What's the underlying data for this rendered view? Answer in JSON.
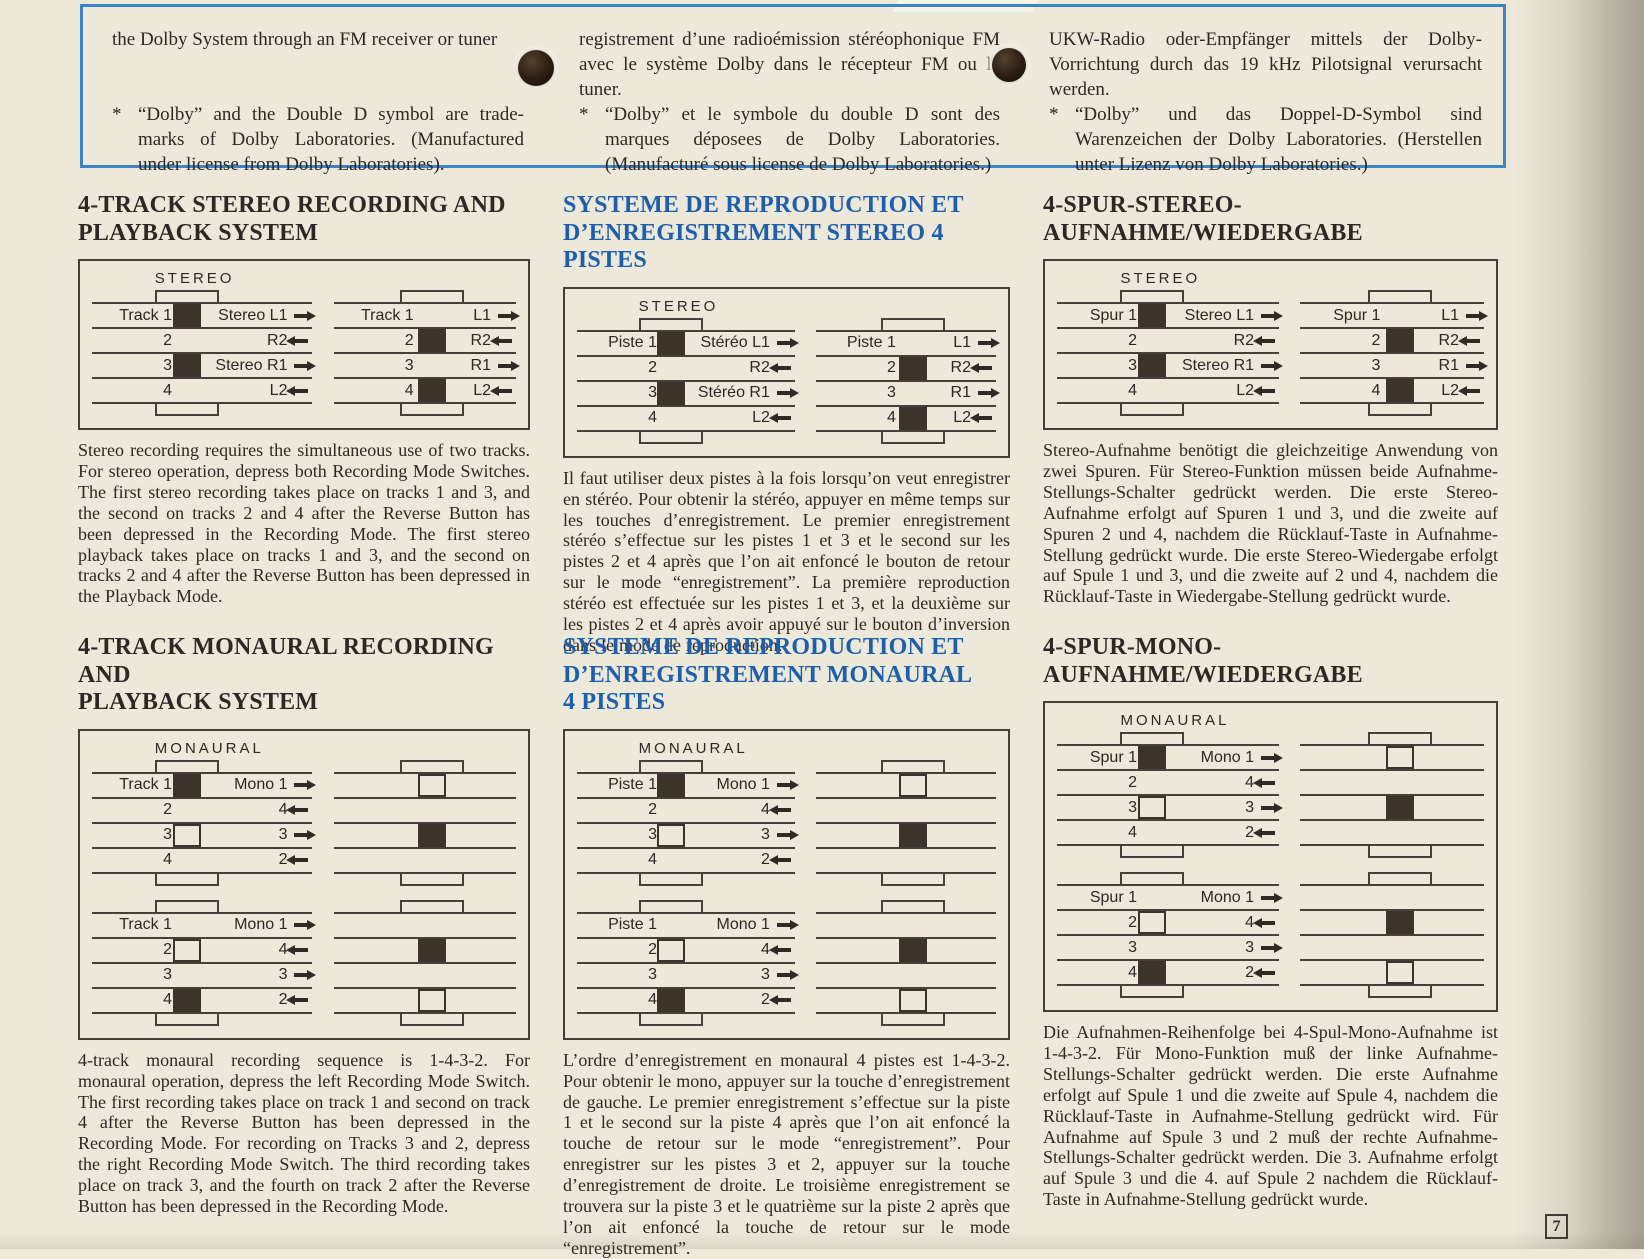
{
  "page": {
    "number": "7"
  },
  "colors": {
    "paper": "#ece8da",
    "ink": "#2d2823",
    "heading_blue": "#1d5fad",
    "box_border_blue": "#3f84c2",
    "diagram_line": "#474038"
  },
  "intro_box": {
    "en": {
      "para": "the Dolby System through an FM receiver or tuner",
      "note_marker": "*",
      "note": "“Dolby” and the Double D symbol are trade-marks of Dolby Laboratories. (Manufactured under license from Dolby Laboratories)."
    },
    "fr": {
      "para": "registrement d’une radioémission stéréophonique FM avec le système Dolby dans le récepteur FM ou le tuner.",
      "note_marker": "*",
      "note": "“Dolby” et le symbole du double D sont des marques déposees de Dolby Laboratories. (Manufacturé sous license de Dolby Laboratories.)"
    },
    "de": {
      "para": "UKW-Radio oder-Empfänger mittels der Dolby-Vorrichtung durch das 19 kHz Pilotsignal verursacht werden.",
      "note_marker": "*",
      "note": "“Dolby” und das Doppel-D-Symbol sind Warenzeichen der Dolby Laboratories. (Herstellen unter Lizenz von Dolby Laboratories.)"
    }
  },
  "sections": {
    "en_stereo": {
      "heading": "4-TRACK STEREO RECORDING AND\nPLAYBACK SYSTEM",
      "body": "Stereo recording requires the simultaneous use of two tracks. For stereo operation, depress both Recording Mode Switches. The first stereo recording takes place on tracks 1 and 3, and the second on tracks 2 and 4 after the Reverse Button has been depressed in the Recording Mode. The first stereo playback takes place on tracks 1 and 3, and the second on tracks 2 and 4 after the Reverse Button has been depressed in the Playback Mode."
    },
    "en_mono": {
      "heading": "4-TRACK MONAURAL RECORDING AND\nPLAYBACK SYSTEM",
      "body": "4-track monaural recording sequence is 1-4-3-2. For monaural operation, depress the left Recording Mode Switch. The first recording takes place on track 1 and second on track 4 after the Reverse Button has been depressed in the Recording Mode. For recording on Tracks 3 and 2, depress the right Recording Mode Switch. The third recording takes place on track 3, and the fourth on track 2 after the Reverse Button has been depressed in the Recording Mode."
    },
    "fr_stereo": {
      "heading": "SYSTEME DE REPRODUCTION ET\nD’ENREGISTREMENT STEREO 4 PISTES",
      "body": "Il faut utiliser deux pistes à la fois lorsqu’on veut enregistrer en stéréo. Pour obtenir la stéréo, appuyer en même temps sur les touches d’enregistrement. Le premier enregistrement stéréo s’effectue sur les pistes 1 et 3 et le second sur les pistes 2 et 4 après que l’on ait enfoncé le bouton de retour sur le mode “enregistrement”. La première reproduction stéréo est effectuée sur les pistes 1 et 3, et la deuxième sur les pistes 2 et 4 après avoir appuyé sur le bouton d’inversion dans le mode de reproduction."
    },
    "fr_mono": {
      "heading": "SYSTEME DE REPRODUCTION ET\nD’ENREGISTREMENT MONAURAL\n4 PISTES",
      "body": "L’ordre d’enregistrement en monaural 4 pistes est 1-4-3-2. Pour obtenir le mono, appuyer sur la touche d’enregistrement de gauche. Le premier enregistrement s’effectue sur la piste 1 et le second sur la piste 4 après que l’on ait enfoncé la touche de retour sur le mode “enregistrement”. Pour enregistrer sur les pistes 3 et 2, appuyer sur la touche d’enregistrement de droite. Le troisième enregistrement se trouvera sur la piste 3 et le quatrième sur la piste 2 après que l’on ait enfoncé la touche de retour sur le mode “enregistrement”."
    },
    "de_stereo": {
      "heading": "4-SPUR-STEREO-AUFNAHME/WIEDERGABE",
      "body": "Stereo-Aufnahme benötigt die gleichzeitige Anwendung von zwei Spuren. Für Stereo-Funktion müssen beide Aufnahme-Stellungs-Schalter gedrückt werden. Die erste Stereo-Aufnahme erfolgt auf Spuren 1 und 3, und die zweite auf Spuren 2 und 4, nachdem die Rücklauf-Taste in Aufnahme-Stellung gedrückt wurde. Die erste Stereo-Wiedergabe erfolgt auf Spule 1 und 3, und die zweite auf 2 und 4, nachdem die Rücklauf-Taste in Wiedergabe-Stellung gedrückt wurde."
    },
    "de_mono": {
      "heading": "4-SPUR-MONO-AUFNAHME/WIEDERGABE",
      "body": "Die Aufnahmen-Reihenfolge bei 4-Spul-Mono-Aufnahme ist 1-4-3-2. Für Mono-Funktion muß der linke Aufnahme-Stellungs-Schalter gedrückt werden. Die erste Aufnahme erfolgt auf Spule 1 und die zweite auf Spule 4, nachdem die Rücklauf-Taste in Aufnahme-Stellung gedrückt wird. Für Aufnahme auf Spule 3 und 2 muß der rechte Aufnahme-Stellungs-Schalter gedrückt werden. Die 3. Aufnahme erfolgt auf Spule 3 und die 4. auf Spule 2 nachdem die Rücklauf-Taste in Aufnahme-Stellung gedrückt wurde."
    }
  },
  "diagrams": {
    "en_stereo": {
      "groups": [
        {
          "header": "STEREO",
          "subs": [
            {
              "bx": 43,
              "rows": [
                {
                  "l": "Track 1",
                  "b": "filled",
                  "r": "Stereo L1",
                  "a": "r"
                },
                {
                  "l": "2",
                  "r": "R2",
                  "a": "l"
                },
                {
                  "l": "3",
                  "b": "filled",
                  "r": "Stereo R1",
                  "a": "r"
                },
                {
                  "l": "4",
                  "r": "L2",
                  "a": "l"
                }
              ]
            },
            {
              "bx": 54,
              "rows": [
                {
                  "l": "Track 1",
                  "r": "L1",
                  "a": "r"
                },
                {
                  "l": "2",
                  "b": "filled",
                  "r": "R2",
                  "a": "l"
                },
                {
                  "l": "3",
                  "r": "R1",
                  "a": "r"
                },
                {
                  "l": "4",
                  "b": "filled",
                  "r": "L2",
                  "a": "l"
                }
              ]
            }
          ]
        }
      ]
    },
    "en_mono": {
      "groups": [
        {
          "header": "MONAURAL",
          "subs": [
            {
              "bx": 43,
              "rows": [
                {
                  "l": "Track 1",
                  "b": "filled",
                  "r": "Mono 1",
                  "a": "r"
                },
                {
                  "l": "2",
                  "r": "4",
                  "a": "l"
                },
                {
                  "l": "3",
                  "b": "open",
                  "r": "3",
                  "a": "r"
                },
                {
                  "l": "4",
                  "r": "2",
                  "a": "l"
                }
              ]
            },
            {
              "bx": 54,
              "rows": [
                {
                  "b": "open"
                },
                {},
                {
                  "b": "filled"
                },
                {}
              ]
            }
          ]
        },
        {
          "subs": [
            {
              "bx": 43,
              "rows": [
                {
                  "l": "Track 1",
                  "r": "Mono 1",
                  "a": "r"
                },
                {
                  "l": "2",
                  "b": "open",
                  "r": "4",
                  "a": "l"
                },
                {
                  "l": "3",
                  "r": "3",
                  "a": "r"
                },
                {
                  "l": "4",
                  "b": "filled",
                  "r": "2",
                  "a": "l"
                }
              ]
            },
            {
              "bx": 54,
              "rows": [
                {},
                {
                  "b": "filled"
                },
                {},
                {
                  "b": "open"
                }
              ]
            }
          ]
        }
      ]
    },
    "fr_stereo": {
      "groups": [
        {
          "header": "STEREO",
          "subs": [
            {
              "bx": 43,
              "rows": [
                {
                  "l": "Piste 1",
                  "b": "filled",
                  "r": "Stéréo L1",
                  "a": "r"
                },
                {
                  "l": "2",
                  "r": "R2",
                  "a": "l"
                },
                {
                  "l": "3",
                  "b": "filled",
                  "r": "Stéréo R1",
                  "a": "r"
                },
                {
                  "l": "4",
                  "r": "L2",
                  "a": "l"
                }
              ]
            },
            {
              "bx": 54,
              "rows": [
                {
                  "l": "Piste 1",
                  "r": "L1",
                  "a": "r"
                },
                {
                  "l": "2",
                  "b": "filled",
                  "r": "R2",
                  "a": "l"
                },
                {
                  "l": "3",
                  "r": "R1",
                  "a": "r"
                },
                {
                  "l": "4",
                  "b": "filled",
                  "r": "L2",
                  "a": "l"
                }
              ]
            }
          ]
        }
      ]
    },
    "fr_mono": {
      "groups": [
        {
          "header": "MONAURAL",
          "subs": [
            {
              "bx": 43,
              "rows": [
                {
                  "l": "Piste 1",
                  "b": "filled",
                  "r": "Mono 1",
                  "a": "r"
                },
                {
                  "l": "2",
                  "r": "4",
                  "a": "l"
                },
                {
                  "l": "3",
                  "b": "open",
                  "r": "3",
                  "a": "r"
                },
                {
                  "l": "4",
                  "r": "2",
                  "a": "l"
                }
              ]
            },
            {
              "bx": 54,
              "rows": [
                {
                  "b": "open"
                },
                {},
                {
                  "b": "filled"
                },
                {}
              ]
            }
          ]
        },
        {
          "subs": [
            {
              "bx": 43,
              "rows": [
                {
                  "l": "Piste 1",
                  "r": "Mono 1",
                  "a": "r"
                },
                {
                  "l": "2",
                  "b": "open",
                  "r": "4",
                  "a": "l"
                },
                {
                  "l": "3",
                  "r": "3",
                  "a": "r"
                },
                {
                  "l": "4",
                  "b": "filled",
                  "r": "2",
                  "a": "l"
                }
              ]
            },
            {
              "bx": 54,
              "rows": [
                {},
                {
                  "b": "filled"
                },
                {},
                {
                  "b": "open"
                }
              ]
            }
          ]
        }
      ]
    },
    "de_stereo": {
      "groups": [
        {
          "header": "STEREO",
          "subs": [
            {
              "bx": 43,
              "rows": [
                {
                  "l": "Spur 1",
                  "b": "filled",
                  "r": "Stereo L1",
                  "a": "r"
                },
                {
                  "l": "2",
                  "r": "R2",
                  "a": "l"
                },
                {
                  "l": "3",
                  "b": "filled",
                  "r": "Stereo R1",
                  "a": "r"
                },
                {
                  "l": "4",
                  "r": "L2",
                  "a": "l"
                }
              ]
            },
            {
              "bx": 54,
              "rows": [
                {
                  "l": "Spur 1",
                  "r": "L1",
                  "a": "r"
                },
                {
                  "l": "2",
                  "b": "filled",
                  "r": "R2",
                  "a": "l"
                },
                {
                  "l": "3",
                  "r": "R1",
                  "a": "r"
                },
                {
                  "l": "4",
                  "b": "filled",
                  "r": "L2",
                  "a": "l"
                }
              ]
            }
          ]
        }
      ]
    },
    "de_mono": {
      "groups": [
        {
          "header": "MONAURAL",
          "subs": [
            {
              "bx": 43,
              "rows": [
                {
                  "l": "Spur 1",
                  "b": "filled",
                  "r": "Mono 1",
                  "a": "r"
                },
                {
                  "l": "2",
                  "r": "4",
                  "a": "l"
                },
                {
                  "l": "3",
                  "b": "open",
                  "r": "3",
                  "a": "r"
                },
                {
                  "l": "4",
                  "r": "2",
                  "a": "l"
                }
              ]
            },
            {
              "bx": 54,
              "rows": [
                {
                  "b": "open"
                },
                {},
                {
                  "b": "filled"
                },
                {}
              ]
            }
          ]
        },
        {
          "subs": [
            {
              "bx": 43,
              "rows": [
                {
                  "l": "Spur 1",
                  "r": "Mono 1",
                  "a": "r"
                },
                {
                  "l": "2",
                  "b": "open",
                  "r": "4",
                  "a": "l"
                },
                {
                  "l": "3",
                  "r": "3",
                  "a": "r"
                },
                {
                  "l": "4",
                  "b": "filled",
                  "r": "2",
                  "a": "l"
                }
              ]
            },
            {
              "bx": 54,
              "rows": [
                {},
                {
                  "b": "filled"
                },
                {},
                {
                  "b": "open"
                }
              ]
            }
          ]
        }
      ]
    }
  }
}
